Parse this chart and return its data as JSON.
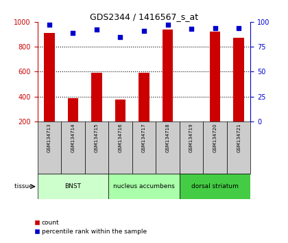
{
  "title": "GDS2344 / 1416567_s_at",
  "samples": [
    "GSM134713",
    "GSM134714",
    "GSM134715",
    "GSM134716",
    "GSM134717",
    "GSM134718",
    "GSM134719",
    "GSM134720",
    "GSM134721"
  ],
  "counts": [
    910,
    390,
    590,
    375,
    590,
    940,
    200,
    920,
    870
  ],
  "percentiles": [
    97,
    89,
    92,
    85,
    91,
    97,
    93,
    94,
    94
  ],
  "bar_color": "#cc0000",
  "dot_color": "#0000cc",
  "ylim_left": [
    200,
    1000
  ],
  "ylim_right": [
    0,
    100
  ],
  "yticks_left": [
    200,
    400,
    600,
    800,
    1000
  ],
  "yticks_right": [
    0,
    25,
    50,
    75,
    100
  ],
  "groups": [
    {
      "label": "BNST",
      "start": 0,
      "end": 3,
      "color": "#ccffcc"
    },
    {
      "label": "nucleus accumbens",
      "start": 3,
      "end": 6,
      "color": "#aaffaa"
    },
    {
      "label": "dorsal striatum",
      "start": 6,
      "end": 9,
      "color": "#44cc44"
    }
  ],
  "tissue_label": "tissue",
  "legend_count": "count",
  "legend_percentile": "percentile rank within the sample",
  "bar_width": 0.45,
  "sample_box_color": "#cccccc",
  "bg_color": "#ffffff",
  "grid_yticks": [
    400,
    600,
    800
  ],
  "title_fontsize": 9,
  "tick_fontsize": 7,
  "sample_fontsize": 5,
  "tissue_fontsize": 6.5,
  "legend_fontsize": 6.5
}
